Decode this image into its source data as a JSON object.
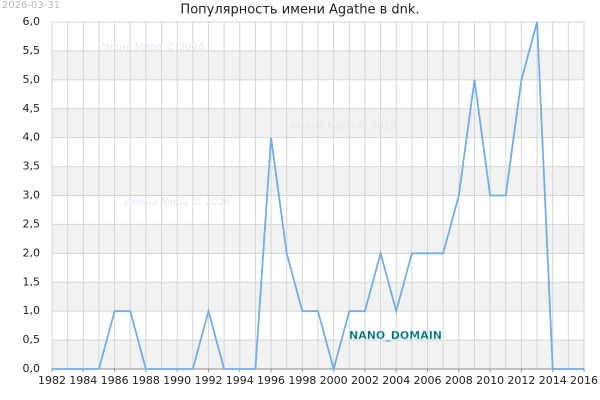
{
  "chart_data": {
    "type": "line",
    "title": "Популярность имени Agathe в dnk.",
    "date_stamp": "2026-03-31",
    "watermarks": [
      "Имена Мира © 2026",
      "Имена Мира © 2026",
      "Имена Мира © 2026"
    ],
    "domain_label": "NANO_DOMAIN",
    "x": [
      1982,
      1983,
      1984,
      1985,
      1986,
      1987,
      1988,
      1989,
      1990,
      1991,
      1992,
      1993,
      1994,
      1995,
      1996,
      1997,
      1998,
      1999,
      2000,
      2001,
      2002,
      2003,
      2004,
      2005,
      2006,
      2007,
      2008,
      2009,
      2010,
      2011,
      2012,
      2013,
      2014,
      2015,
      2016
    ],
    "series": [
      {
        "color": "#72aeea",
        "values": [
          0,
          0,
          0,
          0,
          1,
          1,
          0,
          0,
          0,
          0,
          1,
          0,
          0,
          0,
          4,
          2,
          1,
          1,
          0,
          1,
          1,
          2,
          1,
          2,
          2,
          2,
          3,
          5,
          3,
          3,
          5,
          6,
          0,
          0,
          0
        ]
      }
    ],
    "xlim": [
      1982,
      2016
    ],
    "xticks": [
      1982,
      1984,
      1986,
      1988,
      1990,
      1992,
      1994,
      1996,
      1998,
      2000,
      2002,
      2004,
      2006,
      2008,
      2010,
      2012,
      2014,
      2016
    ],
    "ylim": [
      0,
      6
    ],
    "yticks": [
      {
        "value": 0,
        "label": "0,0"
      },
      {
        "value": 0.5,
        "label": "0,5"
      },
      {
        "value": 1,
        "label": "1,0"
      },
      {
        "value": 1.5,
        "label": "1,5"
      },
      {
        "value": 2,
        "label": "2,0"
      },
      {
        "value": 2.5,
        "label": "2,5"
      },
      {
        "value": 3,
        "label": "3,0"
      },
      {
        "value": 3.5,
        "label": "3,5"
      },
      {
        "value": 4,
        "label": "4,0"
      },
      {
        "value": 4.5,
        "label": "4,5"
      },
      {
        "value": 5,
        "label": "5,0"
      },
      {
        "value": 5.5,
        "label": "5,5"
      },
      {
        "value": 6,
        "label": "6,0"
      }
    ],
    "grid": true
  }
}
